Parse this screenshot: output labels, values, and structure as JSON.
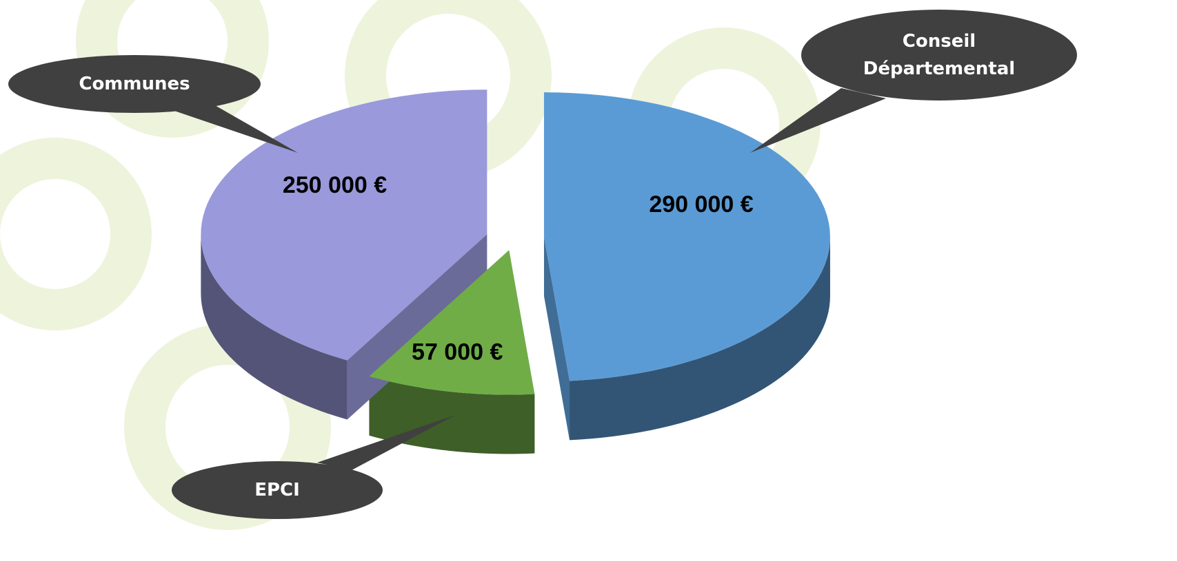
{
  "chart_data": {
    "type": "pie",
    "categories": [
      "Conseil Départemental",
      "EPCI",
      "Communes"
    ],
    "values": [
      290000,
      57000,
      250000
    ],
    "value_labels": [
      "290 000 €",
      "57 000 €",
      "250 000 €"
    ],
    "colors": [
      "#5b9bd5",
      "#70ad47",
      "#9999db"
    ]
  }
}
